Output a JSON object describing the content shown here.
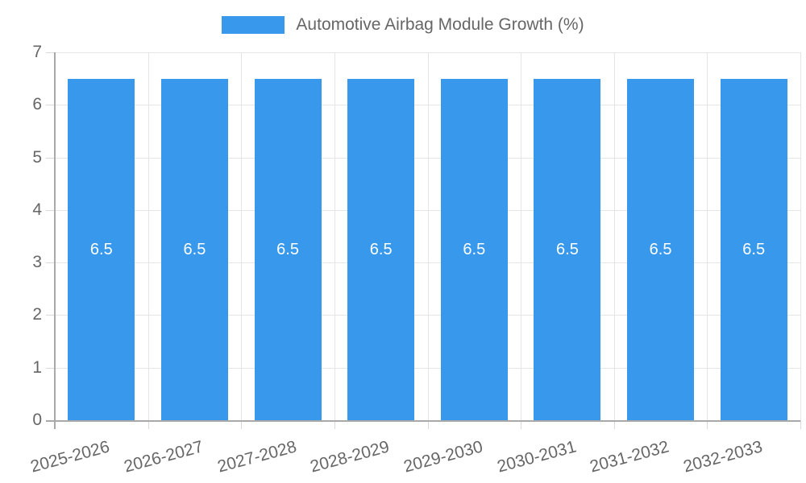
{
  "chart_data": {
    "type": "bar",
    "title": "",
    "xlabel": "",
    "ylabel": "",
    "legend_label": "Automotive Airbag Module Growth (%)",
    "legend_position": "top",
    "categories": [
      "2025-2026",
      "2026-2027",
      "2027-2028",
      "2028-2029",
      "2029-2030",
      "2030-2031",
      "2031-2032",
      "2032-2033"
    ],
    "series": [
      {
        "name": "Automotive Airbag Module Growth (%)",
        "values": [
          6.5,
          6.5,
          6.5,
          6.5,
          6.5,
          6.5,
          6.5,
          6.5
        ]
      }
    ],
    "bar_value_labels": [
      "6.5",
      "6.5",
      "6.5",
      "6.5",
      "6.5",
      "6.5",
      "6.5",
      "6.5"
    ],
    "y_ticks": [
      0,
      1,
      2,
      3,
      4,
      5,
      6,
      7
    ],
    "ylim": [
      0,
      7
    ],
    "grid": true
  },
  "colors": {
    "bar": "#3898ec",
    "bar_label": "#ffffff",
    "axis_text": "#666666",
    "gridline": "#e5e5e5",
    "tick": "#d9d9d9",
    "axis_line": "#a9a9a9",
    "background": "#ffffff"
  }
}
